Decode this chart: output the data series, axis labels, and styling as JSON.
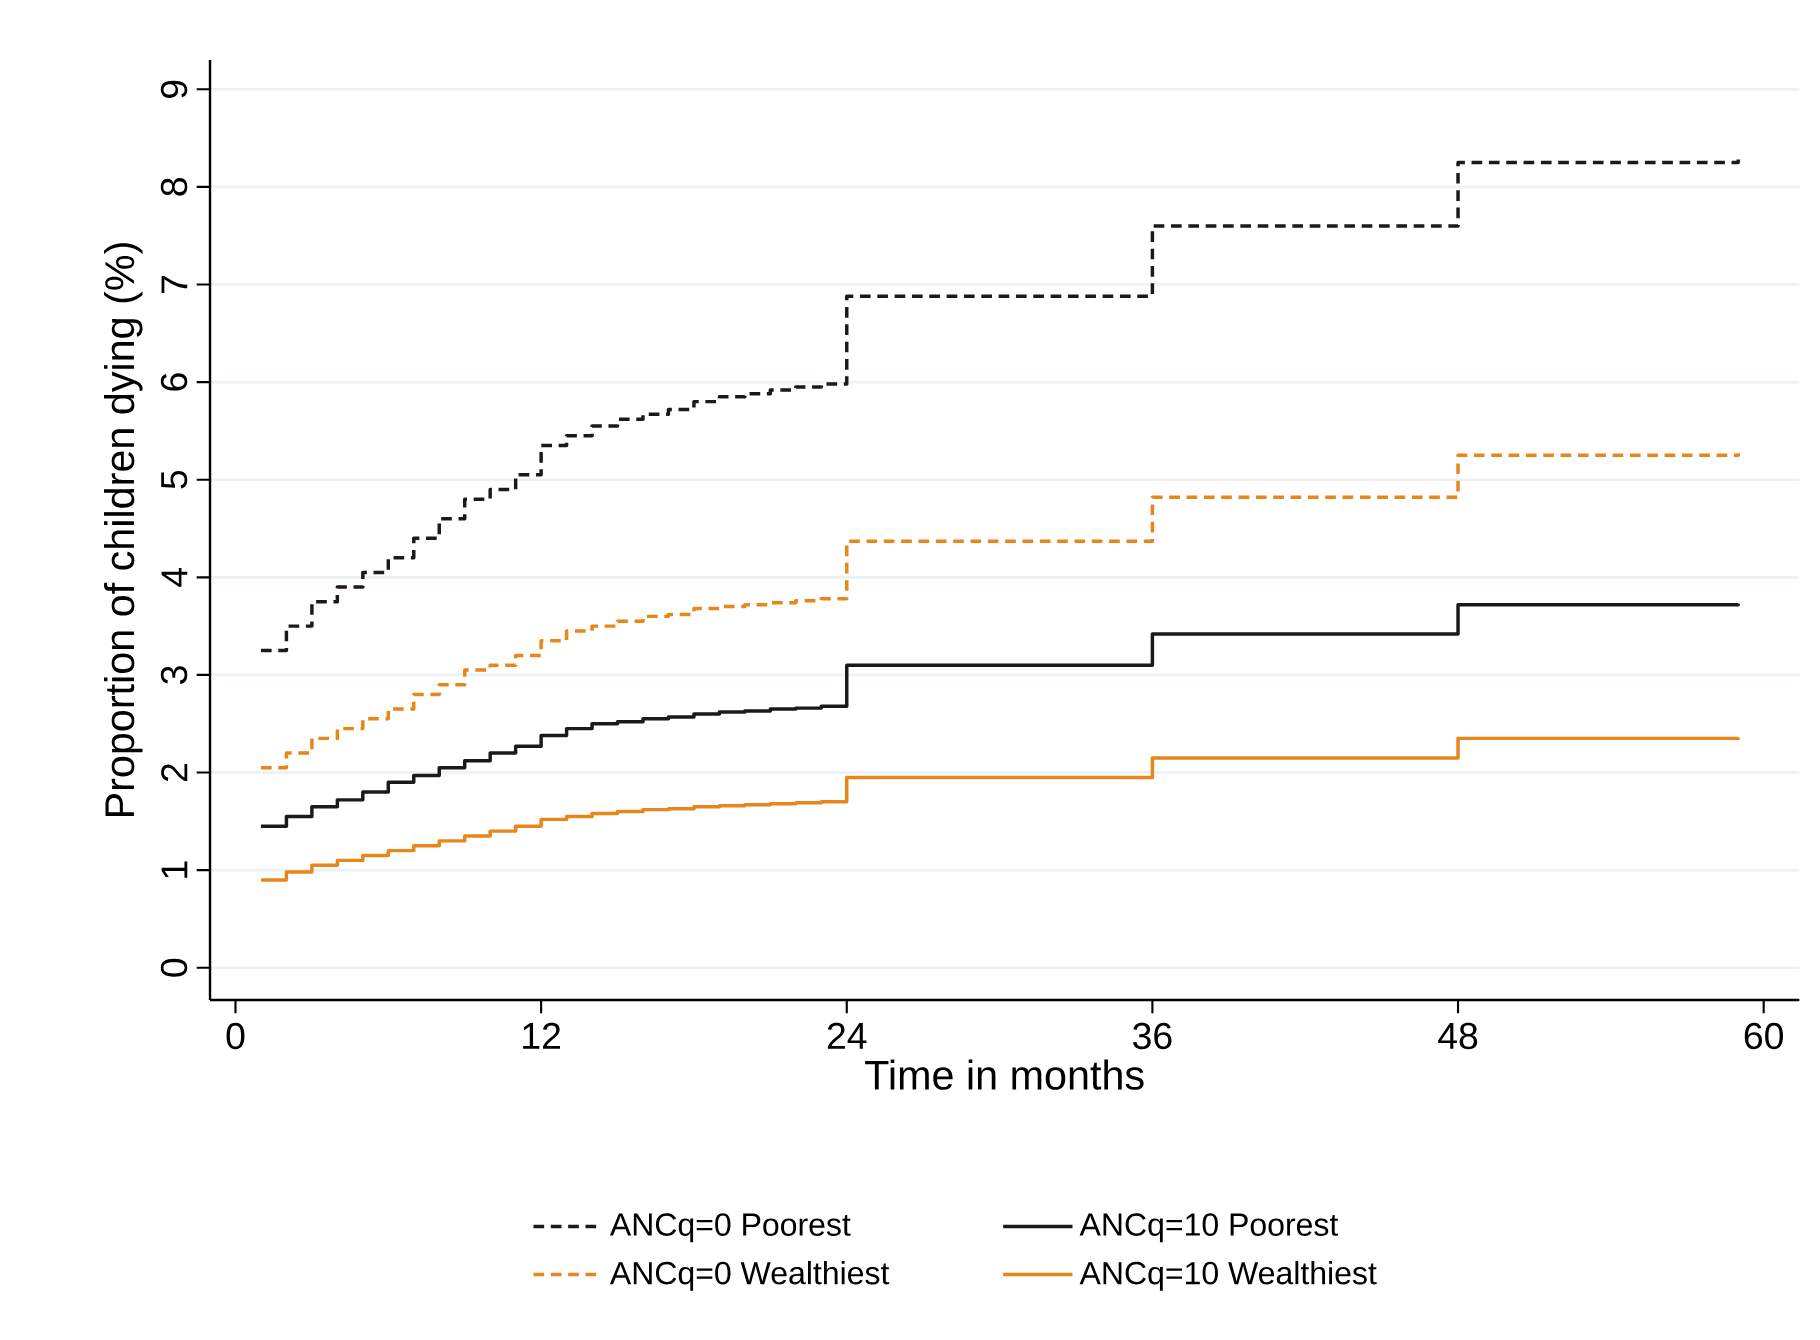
{
  "chart_data": {
    "type": "step",
    "xlabel": "Time in months",
    "ylabel": "Proportion of children dying (%)",
    "x": [
      1,
      2,
      3,
      4,
      5,
      6,
      7,
      8,
      9,
      10,
      11,
      12,
      13,
      14,
      15,
      16,
      17,
      18,
      19,
      20,
      21,
      22,
      23,
      24,
      36,
      48,
      59
    ],
    "series": [
      {
        "name": "ANCq=0 Poorest",
        "color": "#1a1a1a",
        "line_style": "dashed",
        "values": [
          3.25,
          3.5,
          3.75,
          3.9,
          4.05,
          4.2,
          4.4,
          4.6,
          4.8,
          4.9,
          5.05,
          5.35,
          5.45,
          5.55,
          5.62,
          5.67,
          5.72,
          5.8,
          5.85,
          5.88,
          5.92,
          5.95,
          5.98,
          6.88,
          7.6,
          8.25,
          8.28
        ]
      },
      {
        "name": "ANCq=10 Poorest",
        "color": "#1a1a1a",
        "line_style": "solid",
        "values": [
          1.45,
          1.55,
          1.65,
          1.72,
          1.8,
          1.9,
          1.97,
          2.05,
          2.12,
          2.2,
          2.27,
          2.38,
          2.45,
          2.5,
          2.52,
          2.55,
          2.57,
          2.6,
          2.62,
          2.63,
          2.65,
          2.66,
          2.68,
          3.1,
          3.42,
          3.72,
          3.73
        ]
      },
      {
        "name": "ANCq=0 Wealthiest",
        "color": "#e8861a",
        "line_style": "dashed",
        "values": [
          2.05,
          2.2,
          2.35,
          2.45,
          2.55,
          2.65,
          2.8,
          2.9,
          3.05,
          3.1,
          3.2,
          3.35,
          3.45,
          3.5,
          3.55,
          3.6,
          3.62,
          3.68,
          3.7,
          3.72,
          3.74,
          3.76,
          3.78,
          4.37,
          4.82,
          5.25,
          5.27
        ]
      },
      {
        "name": "ANCq=10 Wealthiest",
        "color": "#e8861a",
        "line_style": "solid",
        "values": [
          0.9,
          0.98,
          1.05,
          1.1,
          1.15,
          1.2,
          1.25,
          1.3,
          1.35,
          1.4,
          1.45,
          1.52,
          1.55,
          1.58,
          1.6,
          1.62,
          1.63,
          1.65,
          1.66,
          1.67,
          1.68,
          1.69,
          1.7,
          1.95,
          2.15,
          2.35,
          2.36
        ]
      }
    ],
    "xlim": [
      -1,
      61.4
    ],
    "ylim": [
      -0.33,
      9.3
    ],
    "xticks": [
      0,
      12,
      24,
      36,
      48,
      60
    ],
    "yticks": [
      0,
      1,
      2,
      3,
      4,
      5,
      6,
      7,
      8,
      9
    ],
    "grid": "y",
    "legend": "bottom"
  }
}
